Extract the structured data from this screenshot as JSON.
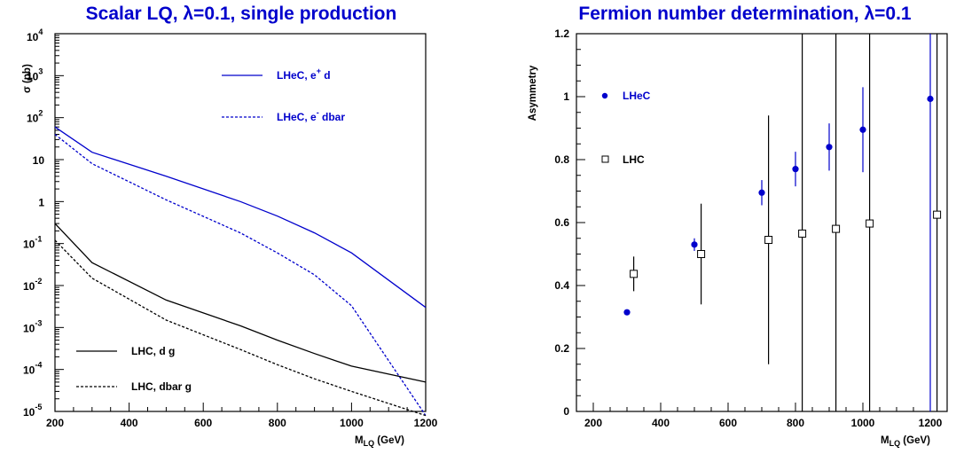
{
  "chart_data": [
    {
      "type": "line",
      "title": "Scalar LQ, λ=0.1, single production",
      "xlabel": "M_LQ (GeV)",
      "ylabel": "σ (pb)",
      "xlim": [
        200,
        1200
      ],
      "ylim_log10": [
        -5,
        4
      ],
      "yscale": "log",
      "x_ticks": [
        "200",
        "400",
        "600",
        "800",
        "1000",
        "1200"
      ],
      "y_ticks": [
        {
          "base": "10",
          "exp": "4"
        },
        {
          "base": "10",
          "exp": "3"
        },
        {
          "base": "10",
          "exp": "2"
        },
        {
          "base": "10",
          "exp": ""
        },
        {
          "base": "1",
          "exp": ""
        },
        {
          "base": "10",
          "exp": "-1"
        },
        {
          "base": "10",
          "exp": "-2"
        },
        {
          "base": "10",
          "exp": "-3"
        },
        {
          "base": "10",
          "exp": "-4"
        },
        {
          "base": "10",
          "exp": "-5"
        }
      ],
      "legend_position": "right (upper) / left (lower)",
      "grid": false,
      "series": [
        {
          "name": "LHeC, e⁺ d",
          "color": "#0000cc",
          "dash": "solid",
          "x": [
            200,
            300,
            500,
            700,
            800,
            900,
            1000,
            1200
          ],
          "y": [
            60,
            15,
            4,
            1.0,
            0.45,
            0.18,
            0.06,
            0.003
          ]
        },
        {
          "name": "LHeC, e⁻ dbar",
          "color": "#0000cc",
          "dash": "dashed",
          "x": [
            200,
            300,
            500,
            700,
            800,
            900,
            1000,
            1200
          ],
          "y": [
            40,
            8,
            1.1,
            0.18,
            0.06,
            0.018,
            0.0033,
            8e-06
          ]
        },
        {
          "name": "LHC, d g",
          "color": "#000000",
          "dash": "solid",
          "x": [
            200,
            300,
            500,
            700,
            800,
            900,
            1000,
            1200
          ],
          "y": [
            0.3,
            0.035,
            0.0045,
            0.0011,
            0.0005,
            0.00024,
            0.00012,
            5e-05
          ]
        },
        {
          "name": "LHC, dbar g",
          "color": "#000000",
          "dash": "dashed",
          "x": [
            200,
            300,
            500,
            700,
            800,
            900,
            1000,
            1200
          ],
          "y": [
            0.12,
            0.015,
            0.0015,
            0.0003,
            0.00013,
            6e-05,
            3e-05,
            8e-06
          ]
        }
      ]
    },
    {
      "type": "scatter",
      "title": "Fermion number determination, λ=0.1",
      "xlabel": "M_LQ (GeV)",
      "ylabel": "Asymmetry",
      "xlim": [
        150,
        1250
      ],
      "ylim": [
        0,
        1.2
      ],
      "x_ticks": [
        "200",
        "400",
        "600",
        "800",
        "1000",
        "1200"
      ],
      "y_ticks": [
        "0",
        "0.2",
        "0.4",
        "0.6",
        "0.8",
        "1",
        "1.2"
      ],
      "grid": false,
      "legend_position": "upper-left",
      "series": [
        {
          "name": "LHeC",
          "color": "#0000cc",
          "marker": "filled-circle",
          "points": [
            {
              "x": 300,
              "y": 0.315,
              "err": 0
            },
            {
              "x": 500,
              "y": 0.53,
              "err": 0.02
            },
            {
              "x": 700,
              "y": 0.695,
              "err": 0.04
            },
            {
              "x": 800,
              "y": 0.77,
              "err": 0.055
            },
            {
              "x": 900,
              "y": 0.84,
              "err": 0.075
            },
            {
              "x": 1000,
              "y": 0.895,
              "err": 0.135
            },
            {
              "x": 1200,
              "y": 0.993,
              "err": 1.5
            }
          ]
        },
        {
          "name": "LHC",
          "color": "#000000",
          "marker": "open-square",
          "points": [
            {
              "x": 320,
              "y": 0.437,
              "err": 0.055
            },
            {
              "x": 520,
              "y": 0.5,
              "err": 0.16
            },
            {
              "x": 720,
              "y": 0.545,
              "err": 0.395
            },
            {
              "x": 820,
              "y": 0.565,
              "err": 1.5
            },
            {
              "x": 920,
              "y": 0.58,
              "err": 1.5
            },
            {
              "x": 1020,
              "y": 0.597,
              "err": 1.5
            },
            {
              "x": 1220,
              "y": 0.625,
              "err": 1.5
            }
          ]
        }
      ]
    }
  ]
}
